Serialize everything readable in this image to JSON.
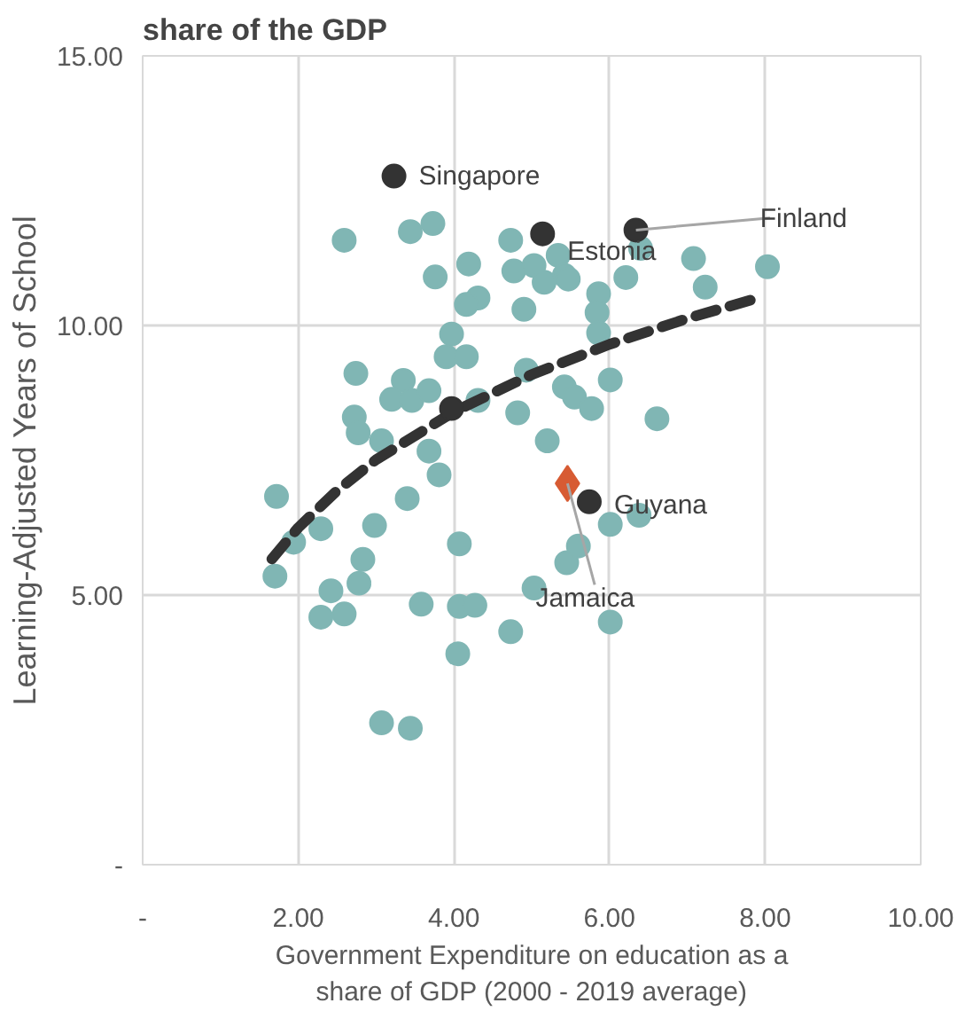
{
  "chart_data": {
    "type": "scatter",
    "title": "share of the GDP",
    "xlabel": "Government Expenditure on education as a share of GDP (2000 - 2019 average)",
    "ylabel": "Learning-Adjusted Years of School",
    "xlim": [
      0,
      10
    ],
    "ylim": [
      0,
      15
    ],
    "xticks": [
      {
        "value": 0,
        "label": "-"
      },
      {
        "value": 2,
        "label": "2.00"
      },
      {
        "value": 4,
        "label": "4.00"
      },
      {
        "value": 6,
        "label": "6.00"
      },
      {
        "value": 8,
        "label": "8.00"
      },
      {
        "value": 10,
        "label": "10.00"
      }
    ],
    "yticks": [
      {
        "value": 0,
        "label": "-"
      },
      {
        "value": 5,
        "label": "5.00"
      },
      {
        "value": 10,
        "label": "10.00"
      },
      {
        "value": 15,
        "label": "15.00"
      }
    ],
    "grid": true,
    "series": [
      {
        "marker": "circle",
        "color": "#80b6b4",
        "x": [
          2.59,
          3.44,
          3.73,
          3.76,
          4.19,
          4.31,
          4.16,
          4.73,
          4.9,
          4.77,
          5.03,
          5.34,
          5.42,
          5.16,
          5.47,
          5.86,
          5.84,
          5.86,
          6.21,
          6.4,
          7.08,
          7.23,
          8.03,
          3.97,
          3.9,
          4.16,
          2.74,
          3.35,
          3.2,
          3.46,
          3.68,
          4.31,
          2.72,
          2.77,
          3.07,
          3.68,
          3.81,
          3.4,
          1.72,
          4.93,
          4.82,
          5.2,
          5.42,
          5.55,
          5.77,
          6.01,
          6.61,
          2.29,
          1.94,
          1.7,
          2.98,
          2.83,
          2.78,
          4.07,
          2.42,
          2.29,
          2.59,
          3.58,
          4.07,
          4.27,
          4.73,
          5.03,
          4.05,
          5.45,
          5.6,
          6.01,
          6.38,
          6.01,
          3.07,
          3.44
        ],
        "values": [
          11.58,
          11.74,
          11.89,
          10.9,
          11.14,
          10.51,
          10.39,
          11.58,
          10.3,
          11.01,
          11.11,
          11.3,
          10.93,
          10.8,
          10.86,
          10.59,
          10.24,
          9.86,
          10.89,
          11.43,
          11.24,
          10.71,
          11.09,
          9.84,
          9.42,
          9.42,
          9.11,
          8.98,
          8.63,
          8.61,
          8.79,
          8.61,
          8.3,
          8.01,
          7.86,
          7.67,
          7.23,
          6.79,
          6.83,
          9.17,
          8.38,
          7.86,
          8.86,
          8.67,
          8.46,
          8.99,
          8.27,
          6.23,
          5.98,
          5.35,
          6.29,
          5.66,
          5.22,
          5.95,
          5.08,
          4.59,
          4.65,
          4.83,
          4.79,
          4.81,
          4.32,
          5.13,
          3.91,
          5.6,
          5.91,
          6.31,
          6.48,
          4.5,
          2.63,
          2.53
        ]
      },
      {
        "type": "line",
        "line_style": "dashed",
        "color": "#333333",
        "x": [
          1.66,
          2,
          2.5,
          3,
          4,
          5,
          6,
          7,
          7.86
        ],
        "values": [
          5.67,
          6.25,
          6.94,
          7.51,
          8.4,
          9.09,
          9.65,
          10.13,
          10.49
        ]
      },
      {
        "marker": "circle",
        "color": "#333333",
        "x": [
          3.23,
          5.14,
          6.34,
          3.97,
          5.74
        ],
        "values": [
          12.77,
          11.7,
          11.77,
          8.46,
          6.73
        ]
      },
      {
        "marker": "diamond",
        "color": "#d75b33",
        "x": [
          5.46
        ],
        "values": [
          7.07
        ]
      }
    ],
    "annotations": [
      {
        "text": "Singapore",
        "x": 3.23,
        "y": 12.77
      },
      {
        "text": "Estonia",
        "x": 5.14,
        "y": 11.7
      },
      {
        "text": "Finland",
        "x": 6.34,
        "y": 11.77
      },
      {
        "text": "Guyana",
        "x": 5.74,
        "y": 6.73
      },
      {
        "text": "Jamaica",
        "x": 5.46,
        "y": 7.07
      }
    ]
  }
}
